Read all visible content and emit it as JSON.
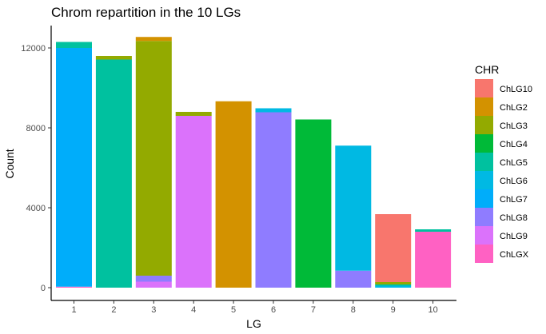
{
  "chart_data": {
    "type": "bar",
    "stacked": true,
    "title": "Chrom repartition in the 10 LGs",
    "xlabel": "LG",
    "ylabel": "Count",
    "categories": [
      "1",
      "2",
      "3",
      "4",
      "5",
      "6",
      "7",
      "8",
      "9",
      "10"
    ],
    "ylim": [
      0,
      13000
    ],
    "yticks": [
      0,
      4000,
      8000,
      12000
    ],
    "grid": false,
    "legend": {
      "title": "CHR",
      "position": "right"
    },
    "series": [
      {
        "name": "ChLG10",
        "color": "#F8766D",
        "values": [
          0,
          0,
          0,
          0,
          0,
          0,
          0,
          0,
          3400,
          0
        ]
      },
      {
        "name": "ChLG2",
        "color": "#D39200",
        "values": [
          0,
          0,
          200,
          0,
          9330,
          0,
          0,
          0,
          0,
          0
        ]
      },
      {
        "name": "ChLG3",
        "color": "#93AA00",
        "values": [
          0,
          180,
          11750,
          200,
          0,
          0,
          0,
          0,
          120,
          0
        ]
      },
      {
        "name": "ChLG4",
        "color": "#00BA38",
        "values": [
          0,
          0,
          0,
          0,
          0,
          0,
          8420,
          0,
          0,
          0
        ]
      },
      {
        "name": "ChLG5",
        "color": "#00C19F",
        "values": [
          300,
          11420,
          0,
          0,
          0,
          0,
          0,
          0,
          60,
          120
        ]
      },
      {
        "name": "ChLG6",
        "color": "#00B9E3",
        "values": [
          0,
          0,
          0,
          0,
          0,
          200,
          0,
          6260,
          100,
          0
        ]
      },
      {
        "name": "ChLG7",
        "color": "#00ADFA",
        "values": [
          11950,
          0,
          0,
          0,
          0,
          0,
          0,
          0,
          0,
          0
        ]
      },
      {
        "name": "ChLG8",
        "color": "#8F7CFF",
        "values": [
          0,
          0,
          300,
          0,
          0,
          8780,
          0,
          850,
          0,
          0
        ]
      },
      {
        "name": "ChLG9",
        "color": "#DB72FB",
        "values": [
          0,
          0,
          300,
          8600,
          0,
          0,
          0,
          0,
          0,
          0
        ]
      },
      {
        "name": "ChLGX",
        "color": "#FF61C3",
        "values": [
          50,
          0,
          0,
          0,
          0,
          0,
          0,
          0,
          0,
          2800
        ]
      }
    ]
  }
}
